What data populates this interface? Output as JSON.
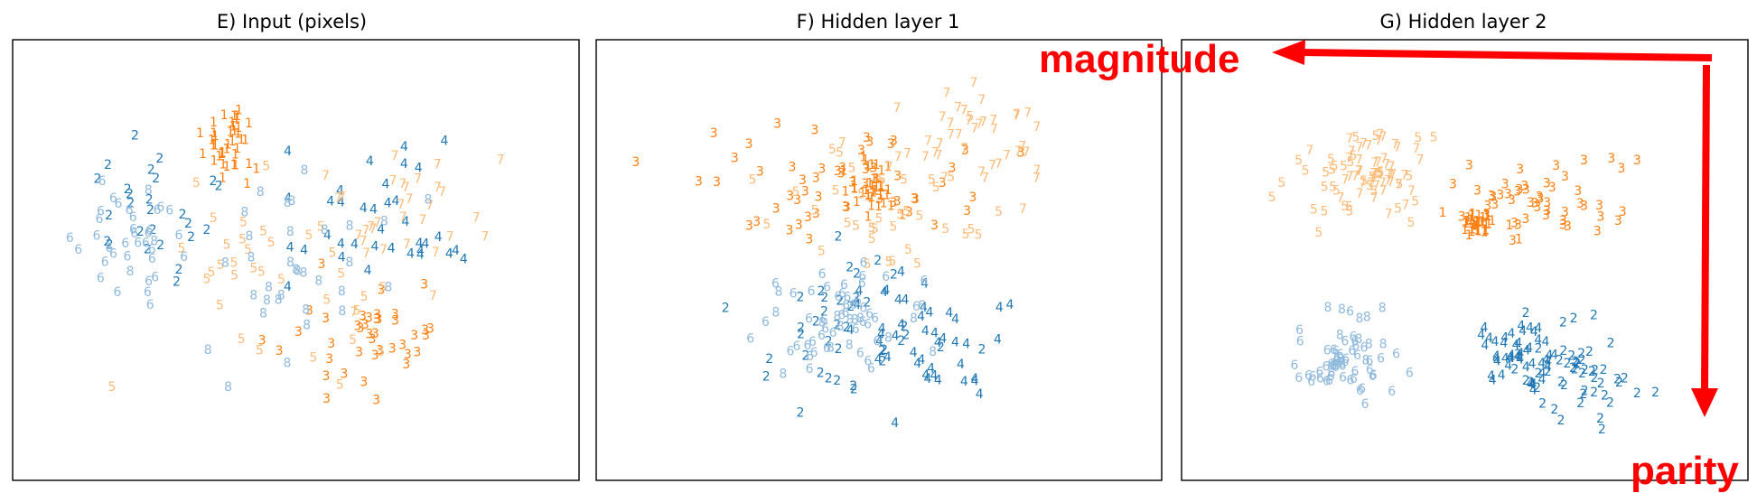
{
  "colors": {
    "digit_1": "#ff7f0e",
    "digit_2": "#1f77b4",
    "digit_3": "#ff7f0e",
    "digit_4": "#1f77b4",
    "digit_5": "#ffbb78",
    "digit_6": "#8fb9dd",
    "digit_7": "#ffbb78",
    "digit_8": "#8fb9dd",
    "annotation": "#ff0000",
    "frame": "#000000"
  },
  "annotations": {
    "magnitude": "magnitude",
    "parity": "parity"
  },
  "chart_data": [
    {
      "type": "scatter",
      "title": "E) Input (pixels)",
      "xlabel": "",
      "ylabel": "",
      "grid": false,
      "marker": "digit label",
      "xlim": [
        -10,
        10
      ],
      "ylim": [
        -10,
        10
      ],
      "clusters": [
        {
          "label": "1",
          "center": [
            -2.3,
            5.2
          ],
          "spread": [
            1.0,
            1.2
          ],
          "count": 40
        },
        {
          "label": "2",
          "center": [
            -5.4,
            1.8
          ],
          "spread": [
            2.4,
            3.6
          ],
          "count": 26
        },
        {
          "label": "3",
          "center": [
            2.2,
            -3.8
          ],
          "spread": [
            2.8,
            2.6
          ],
          "count": 40
        },
        {
          "label": "4",
          "center": [
            2.8,
            2.0
          ],
          "spread": [
            3.0,
            2.8
          ],
          "count": 36
        },
        {
          "label": "5",
          "center": [
            -1.0,
            -1.0
          ],
          "spread": [
            4.2,
            4.4
          ],
          "count": 34
        },
        {
          "label": "6",
          "center": [
            -5.8,
            0.5
          ],
          "spread": [
            1.8,
            3.2
          ],
          "count": 34
        },
        {
          "label": "7",
          "center": [
            3.5,
            1.8
          ],
          "spread": [
            2.6,
            3.0
          ],
          "count": 32
        },
        {
          "label": "8",
          "center": [
            -1.0,
            -0.5
          ],
          "spread": [
            4.0,
            4.3
          ],
          "count": 36
        }
      ]
    },
    {
      "type": "scatter",
      "title": "F) Hidden layer 1",
      "xlabel": "",
      "ylabel": "",
      "grid": false,
      "marker": "digit label",
      "xlim": [
        -10,
        10
      ],
      "ylim": [
        -10,
        10
      ],
      "clusters": [
        {
          "label": "1",
          "center": [
            -0.3,
            3.2
          ],
          "spread": [
            0.8,
            1.0
          ],
          "count": 38
        },
        {
          "label": "2",
          "center": [
            -1.5,
            -3.5
          ],
          "spread": [
            3.6,
            3.2
          ],
          "count": 38
        },
        {
          "label": "3",
          "center": [
            -1.0,
            3.3
          ],
          "spread": [
            3.8,
            2.4
          ],
          "count": 54
        },
        {
          "label": "4",
          "center": [
            1.2,
            -3.5
          ],
          "spread": [
            2.4,
            2.6
          ],
          "count": 44
        },
        {
          "label": "5",
          "center": [
            0.5,
            2.0
          ],
          "spread": [
            4.2,
            2.4
          ],
          "count": 36
        },
        {
          "label": "6",
          "center": [
            -1.8,
            -2.5
          ],
          "spread": [
            2.8,
            2.4
          ],
          "count": 46
        },
        {
          "label": "7",
          "center": [
            3.0,
            5.2
          ],
          "spread": [
            2.4,
            2.2
          ],
          "count": 44
        },
        {
          "label": "8",
          "center": [
            -0.5,
            -3.0
          ],
          "spread": [
            2.8,
            2.4
          ],
          "count": 14
        }
      ]
    },
    {
      "type": "scatter",
      "title": "G) Hidden layer 2",
      "xlabel": "",
      "ylabel": "",
      "grid": false,
      "marker": "digit label",
      "xlim": [
        -10,
        10
      ],
      "ylim": [
        -10,
        10
      ],
      "clusters": [
        {
          "label": "1",
          "center": [
            0.5,
            1.5
          ],
          "spread": [
            0.9,
            0.6
          ],
          "count": 34
        },
        {
          "label": "2",
          "center": [
            4.0,
            -5.2
          ],
          "spread": [
            2.0,
            2.0
          ],
          "count": 50
        },
        {
          "label": "3",
          "center": [
            3.0,
            2.8
          ],
          "spread": [
            2.6,
            1.8
          ],
          "count": 50
        },
        {
          "label": "4",
          "center": [
            1.8,
            -4.5
          ],
          "spread": [
            1.4,
            1.3
          ],
          "count": 48
        },
        {
          "label": "5",
          "center": [
            -4.0,
            3.5
          ],
          "spread": [
            2.6,
            2.0
          ],
          "count": 36
        },
        {
          "label": "6",
          "center": [
            -4.2,
            -4.8
          ],
          "spread": [
            1.8,
            1.4
          ],
          "count": 54
        },
        {
          "label": "7",
          "center": [
            -3.2,
            4.0
          ],
          "spread": [
            1.4,
            1.6
          ],
          "count": 46
        },
        {
          "label": "8",
          "center": [
            -3.0,
            -3.5
          ],
          "spread": [
            1.6,
            1.4
          ],
          "count": 10
        }
      ]
    }
  ]
}
